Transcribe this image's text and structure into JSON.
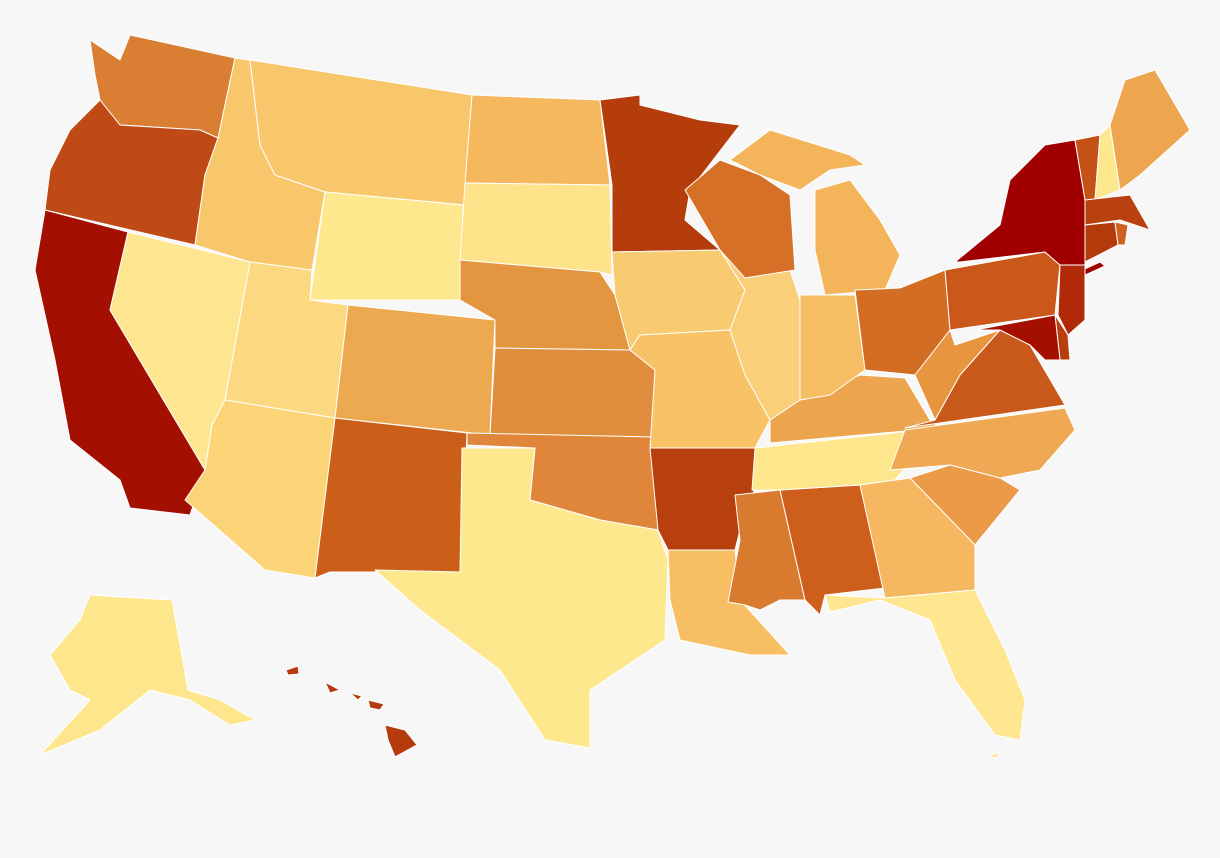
{
  "map": {
    "background": "#f7f7f7",
    "border_color": "#ffffff",
    "regions": [
      {
        "color": "#d97e33"
      },
      {
        "color": "#bf4a16"
      },
      {
        "color": "#a30f00"
      },
      {
        "color": "#fee58f"
      },
      {
        "color": "#f9c76b"
      },
      {
        "color": "#f9c76b"
      },
      {
        "color": "#fee88e"
      },
      {
        "color": "#fcd880"
      },
      {
        "color": "#eda950"
      },
      {
        "color": "#fcd478"
      },
      {
        "color": "#cb5f1a"
      },
      {
        "color": "#f5b85f"
      },
      {
        "color": "#fee38a"
      },
      {
        "color": "#e3963f"
      },
      {
        "color": "#e08e3d"
      },
      {
        "color": "#e0863a"
      },
      {
        "color": "#fee88e"
      },
      {
        "color": "#b53d0c"
      },
      {
        "color": "#f9cb70"
      },
      {
        "color": "#f8c366"
      },
      {
        "color": "#b8400e"
      },
      {
        "color": "#f7be63"
      },
      {
        "color": "#d97b2f"
      },
      {
        "color": "#cd5e1c"
      },
      {
        "color": "#fee68c"
      },
      {
        "color": "#eda44f"
      },
      {
        "color": "#f9d079"
      },
      {
        "color": "#d67026"
      },
      {
        "color": "#f4b45a"
      },
      {
        "color": "#f4b45a"
      },
      {
        "color": "#f6be63"
      },
      {
        "color": "#d46d24"
      },
      {
        "color": "#e8953f"
      },
      {
        "color": "#c9591a"
      },
      {
        "color": "#efa853"
      },
      {
        "color": "#eb9b48"
      },
      {
        "color": "#f5b860"
      },
      {
        "color": "#fee790"
      },
      {
        "color": "#c9581a"
      },
      {
        "color": "#a10000"
      },
      {
        "color": "#b02a0a"
      },
      {
        "color": "#b93d0e"
      },
      {
        "color": "#a50f00"
      },
      {
        "color": "#c45217"
      },
      {
        "color": "#fee88e"
      },
      {
        "color": "#eda54f"
      },
      {
        "color": "#b9400f"
      },
      {
        "color": "#b23a0b"
      },
      {
        "color": "#cf6120"
      },
      {
        "color": "#fee68c"
      },
      {
        "color": "#b53a0c"
      }
    ]
  }
}
